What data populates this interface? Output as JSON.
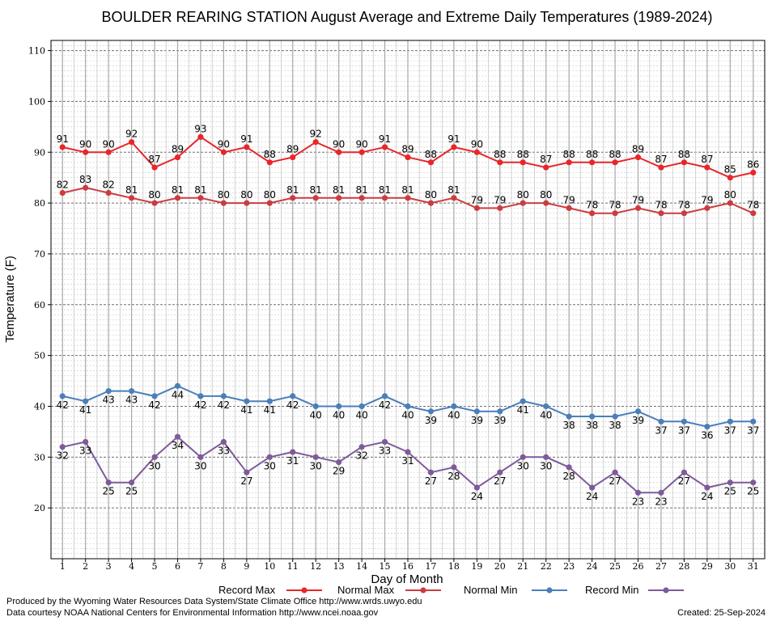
{
  "chart_data": {
    "type": "line",
    "title": "BOULDER REARING STATION August Average and Extreme Daily Temperatures (1989-2024)",
    "xlabel": "Day of Month",
    "ylabel": "Temperature (F)",
    "xlim": [
      0.5,
      31.5
    ],
    "ylim": [
      10,
      112
    ],
    "yticks": [
      20,
      30,
      40,
      50,
      60,
      70,
      80,
      90,
      100,
      110
    ],
    "grid": true,
    "x": [
      1,
      2,
      3,
      4,
      5,
      6,
      7,
      8,
      9,
      10,
      11,
      12,
      13,
      14,
      15,
      16,
      17,
      18,
      19,
      20,
      21,
      22,
      23,
      24,
      25,
      26,
      27,
      28,
      29,
      30,
      31
    ],
    "legend_position": "bottom",
    "series": [
      {
        "name": "Record Max",
        "color": "#e8262a",
        "label_position": "above",
        "values": [
          91,
          90,
          90,
          92,
          87,
          89,
          93,
          90,
          91,
          88,
          89,
          92,
          90,
          90,
          91,
          89,
          88,
          91,
          90,
          88,
          88,
          87,
          88,
          88,
          88,
          89,
          87,
          88,
          87,
          85,
          86
        ]
      },
      {
        "name": "Normal Max",
        "color": "#cc3c3f",
        "label_position": "above",
        "values": [
          82,
          83,
          82,
          81,
          80,
          81,
          81,
          80,
          80,
          80,
          81,
          81,
          81,
          81,
          81,
          81,
          80,
          81,
          79,
          79,
          80,
          80,
          79,
          78,
          78,
          79,
          78,
          78,
          79,
          80,
          78
        ]
      },
      {
        "name": "Normal Min",
        "color": "#4a7fb8",
        "label_position": "below",
        "values": [
          42,
          41,
          43,
          43,
          42,
          44,
          42,
          42,
          41,
          41,
          42,
          40,
          40,
          40,
          42,
          40,
          39,
          40,
          39,
          39,
          41,
          40,
          38,
          38,
          38,
          39,
          37,
          37,
          36,
          37,
          37
        ]
      },
      {
        "name": "Record Min",
        "color": "#7e5a9b",
        "label_position": "below",
        "values": [
          32,
          33,
          25,
          25,
          30,
          34,
          30,
          33,
          27,
          30,
          31,
          30,
          29,
          32,
          33,
          31,
          27,
          28,
          24,
          27,
          30,
          30,
          28,
          24,
          27,
          23,
          23,
          27,
          24,
          25,
          25
        ]
      }
    ]
  },
  "footer": {
    "produced_by": "Produced by the Wyoming Water Resources Data System/State Climate Office http://www.wrds.uwyo.edu",
    "courtesy": "Data courtesy NOAA National Centers for Environmental Information http://www.ncei.noaa.gov",
    "created": "Created:  25-Sep-2024"
  }
}
